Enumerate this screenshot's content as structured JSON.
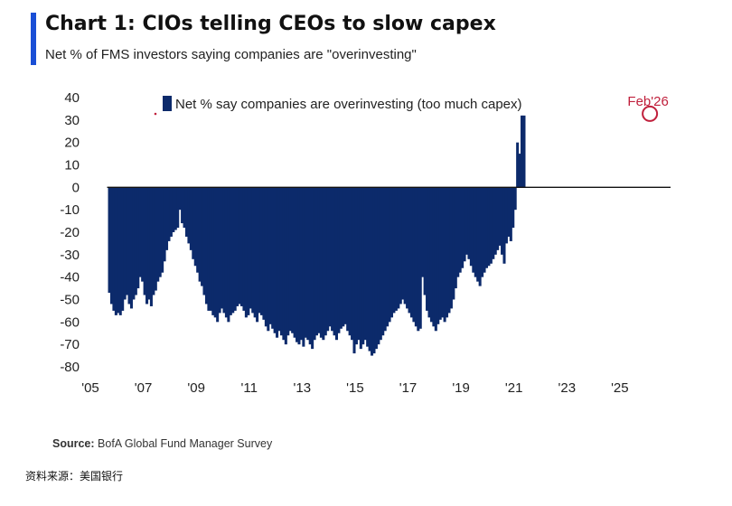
{
  "header": {
    "title": "Chart 1: CIOs telling CEOs to slow capex",
    "subtitle": "Net % of FMS investors saying companies are \"overinvesting\""
  },
  "footer": {
    "source_label": "Source:",
    "source_text": "BofA Global Fund Manager Survey",
    "caption": "资料来源：美国银行",
    "watermark": "⊡⊡⊡"
  },
  "colors": {
    "bar": "#0c2a6b",
    "accent": "#1a4fd6",
    "annotation": "#c0203c"
  },
  "chart_data": {
    "type": "bar",
    "title": "Chart 1: CIOs telling CEOs to slow capex",
    "subtitle": "Net % of FMS investors saying companies are \"overinvesting\"",
    "xlabel": "",
    "ylabel": "",
    "ylim": [
      -80,
      40
    ],
    "yticks": [
      40,
      30,
      20,
      10,
      0,
      -10,
      -20,
      -30,
      -40,
      -50,
      -60,
      -70,
      -80
    ],
    "xticks": [
      "'05",
      "'07",
      "'09",
      "'11",
      "'13",
      "'15",
      "'17",
      "'19",
      "'21",
      "'23",
      "'25"
    ],
    "xlim": [
      "2005-01",
      "2026-12"
    ],
    "grid": false,
    "legend": {
      "position": "top-left",
      "entries": [
        "Net % say companies are overinvesting (too much capex)"
      ]
    },
    "annotation": {
      "label": "Feb'26",
      "x": "2026-02",
      "y": 32
    },
    "series": [
      {
        "name": "Net % say companies are overinvesting (too much capex)",
        "start": "2005-09",
        "frequency": "monthly",
        "values": [
          -47,
          -52,
          -55,
          -57,
          -56,
          -57,
          -55,
          -50,
          -48,
          -52,
          -54,
          -50,
          -48,
          -45,
          -40,
          -42,
          -48,
          -52,
          -50,
          -53,
          -48,
          -46,
          -42,
          -40,
          -38,
          -33,
          -28,
          -24,
          -22,
          -20,
          -19,
          -18,
          -10,
          -16,
          -18,
          -22,
          -25,
          -28,
          -32,
          -35,
          -38,
          -42,
          -44,
          -48,
          -52,
          -55,
          -55,
          -57,
          -58,
          -60,
          -56,
          -54,
          -56,
          -58,
          -60,
          -57,
          -56,
          -55,
          -53,
          -52,
          -53,
          -55,
          -58,
          -57,
          -54,
          -56,
          -58,
          -60,
          -56,
          -57,
          -59,
          -62,
          -64,
          -61,
          -63,
          -65,
          -67,
          -64,
          -66,
          -68,
          -70,
          -66,
          -64,
          -65,
          -67,
          -69,
          -70,
          -68,
          -71,
          -67,
          -68,
          -70,
          -72,
          -68,
          -66,
          -65,
          -67,
          -68,
          -66,
          -64,
          -62,
          -64,
          -66,
          -68,
          -65,
          -63,
          -62,
          -61,
          -64,
          -66,
          -68,
          -74,
          -70,
          -68,
          -72,
          -70,
          -68,
          -71,
          -73,
          -75,
          -74,
          -72,
          -70,
          -68,
          -66,
          -64,
          -62,
          -60,
          -58,
          -56,
          -55,
          -54,
          -52,
          -50,
          -52,
          -54,
          -56,
          -58,
          -60,
          -62,
          -64,
          -63,
          -40,
          -48,
          -55,
          -58,
          -60,
          -62,
          -64,
          -61,
          -59,
          -58,
          -60,
          -58,
          -56,
          -54,
          -50,
          -45,
          -40,
          -38,
          -36,
          -33,
          -30,
          -32,
          -35,
          -38,
          -40,
          -42,
          -44,
          -40,
          -38,
          -36,
          -35,
          -34,
          -32,
          -30,
          -28,
          -26,
          -30,
          -34,
          -25,
          -22,
          -24,
          -18,
          -10,
          20,
          15,
          32,
          32
        ]
      }
    ]
  }
}
